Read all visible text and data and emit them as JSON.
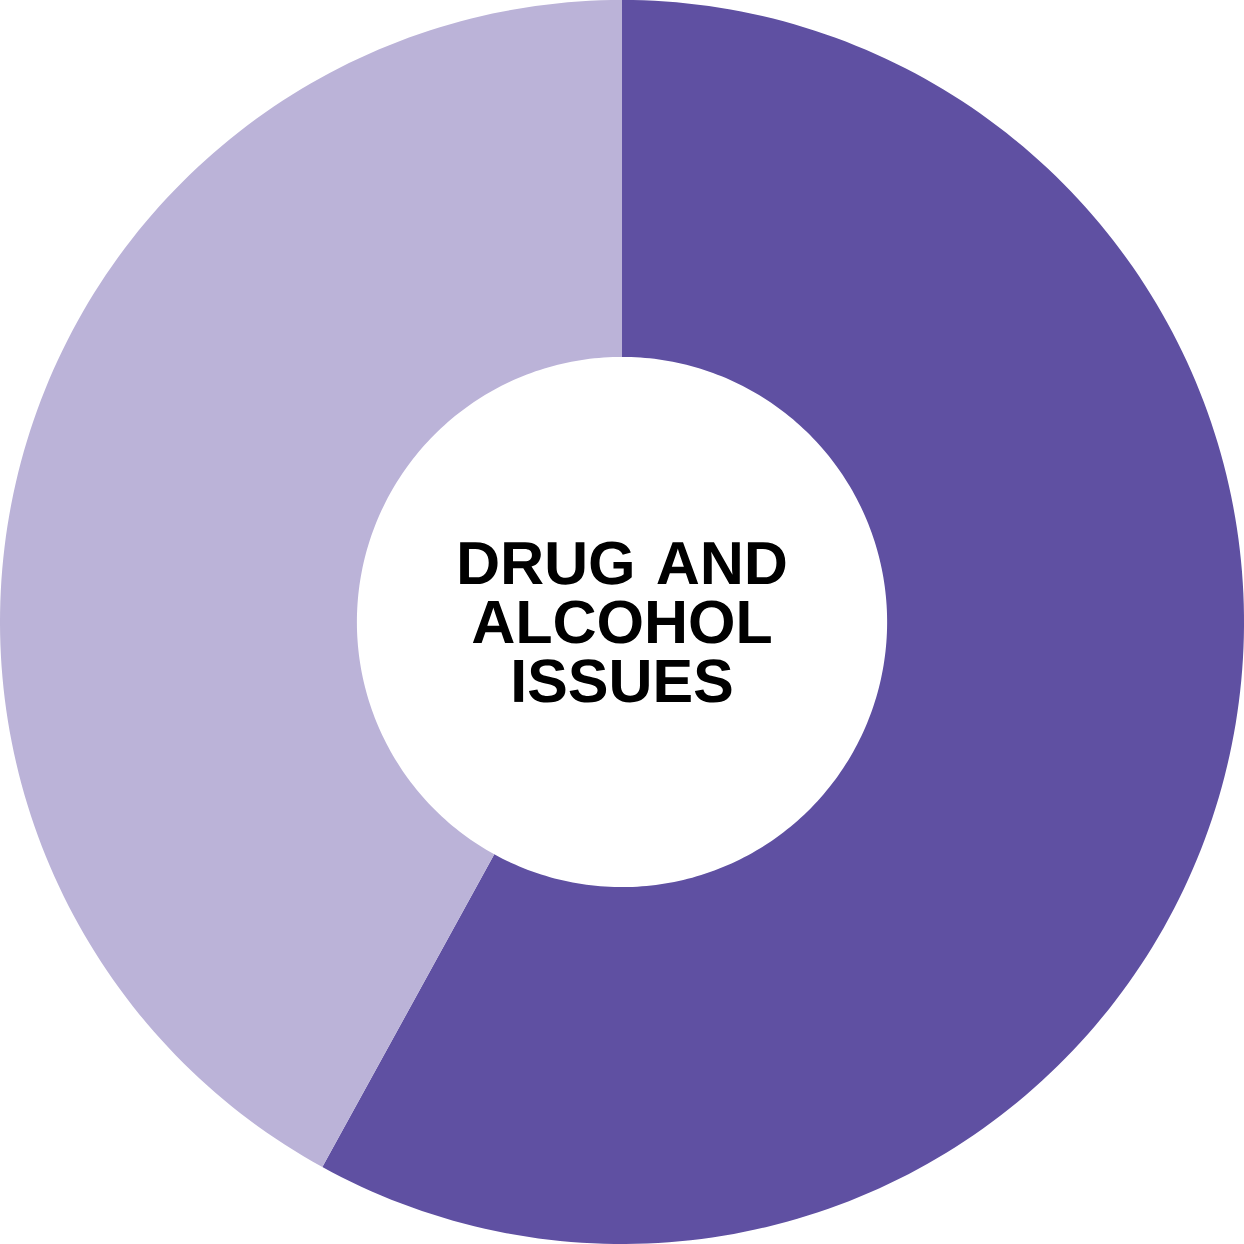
{
  "chart_data": {
    "type": "donut",
    "title": "DRUG AND ALCOHOL ISSUES",
    "categories": [
      null,
      null
    ],
    "values": [
      58,
      42
    ],
    "colors": [
      "#5f50a2",
      "#bbb3d8"
    ]
  }
}
